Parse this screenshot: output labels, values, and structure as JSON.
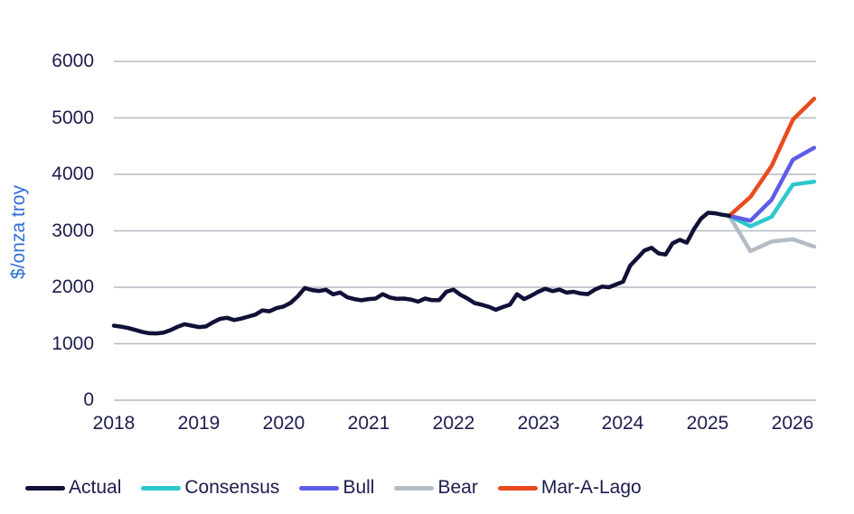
{
  "page": {
    "background": "#ffffff"
  },
  "chart_data": {
    "type": "line",
    "title": "",
    "xlabel": "",
    "ylabel": "$/onza troy",
    "ylim": [
      0,
      6000
    ],
    "grid": "horizontal-only",
    "legend_position": "bottom-left",
    "y_ticks": [
      0,
      1000,
      2000,
      3000,
      4000,
      5000,
      6000
    ],
    "y_tick_labels": [
      "0",
      "1000",
      "2000",
      "3000",
      "4000",
      "5000",
      "6000"
    ],
    "x_tick_labels": [
      "2018",
      "2019",
      "2020",
      "2021",
      "2022",
      "2023",
      "2024",
      "2025",
      "2026"
    ],
    "x_start_month": "2018-01",
    "actual": {
      "name": "Actual",
      "color": "#101038",
      "monthly_values": [
        1320,
        1302,
        1278,
        1245,
        1210,
        1185,
        1183,
        1195,
        1240,
        1300,
        1345,
        1320,
        1295,
        1305,
        1380,
        1440,
        1460,
        1420,
        1445,
        1480,
        1515,
        1590,
        1575,
        1630,
        1660,
        1725,
        1840,
        1988,
        1950,
        1935,
        1955,
        1875,
        1908,
        1822,
        1790,
        1770,
        1790,
        1800,
        1879,
        1820,
        1795,
        1800,
        1783,
        1745,
        1800,
        1772,
        1772,
        1920,
        1958,
        1868,
        1800,
        1720,
        1692,
        1655,
        1601,
        1650,
        1692,
        1879,
        1790,
        1852,
        1920,
        1974,
        1932,
        1958,
        1905,
        1920,
        1889,
        1879,
        1958,
        2011,
        2000,
        2050,
        2100,
        2385,
        2515,
        2650,
        2700,
        2600,
        2580,
        2780,
        2840,
        2790,
        3025,
        3215,
        3320,
        3310,
        3285,
        3265
      ]
    },
    "forecast_months": [
      "2025-04",
      "2025-07",
      "2025-10",
      "2026-01",
      "2026-04"
    ],
    "forecast_month_index": [
      87,
      90,
      93,
      96,
      99
    ],
    "forecasts": [
      {
        "name": "Consensus",
        "color": "#2ec8cc",
        "values": [
          3265,
          3080,
          3250,
          3820,
          3870
        ]
      },
      {
        "name": "Bull",
        "color": "#5d5de8",
        "values": [
          3265,
          3180,
          3550,
          4260,
          4470
        ]
      },
      {
        "name": "Bear",
        "color": "#b4bbc6",
        "values": [
          3265,
          2640,
          2810,
          2850,
          2720
        ]
      },
      {
        "name": "Mar-A-Lago",
        "color": "#e84b1c",
        "values": [
          3265,
          3600,
          4150,
          4970,
          5340
        ]
      }
    ],
    "colors": {
      "gridline": "#b3bac3",
      "axis_text": "#1c1c4e",
      "y_title": "#2f6fd8",
      "background": "#ffffff"
    }
  }
}
